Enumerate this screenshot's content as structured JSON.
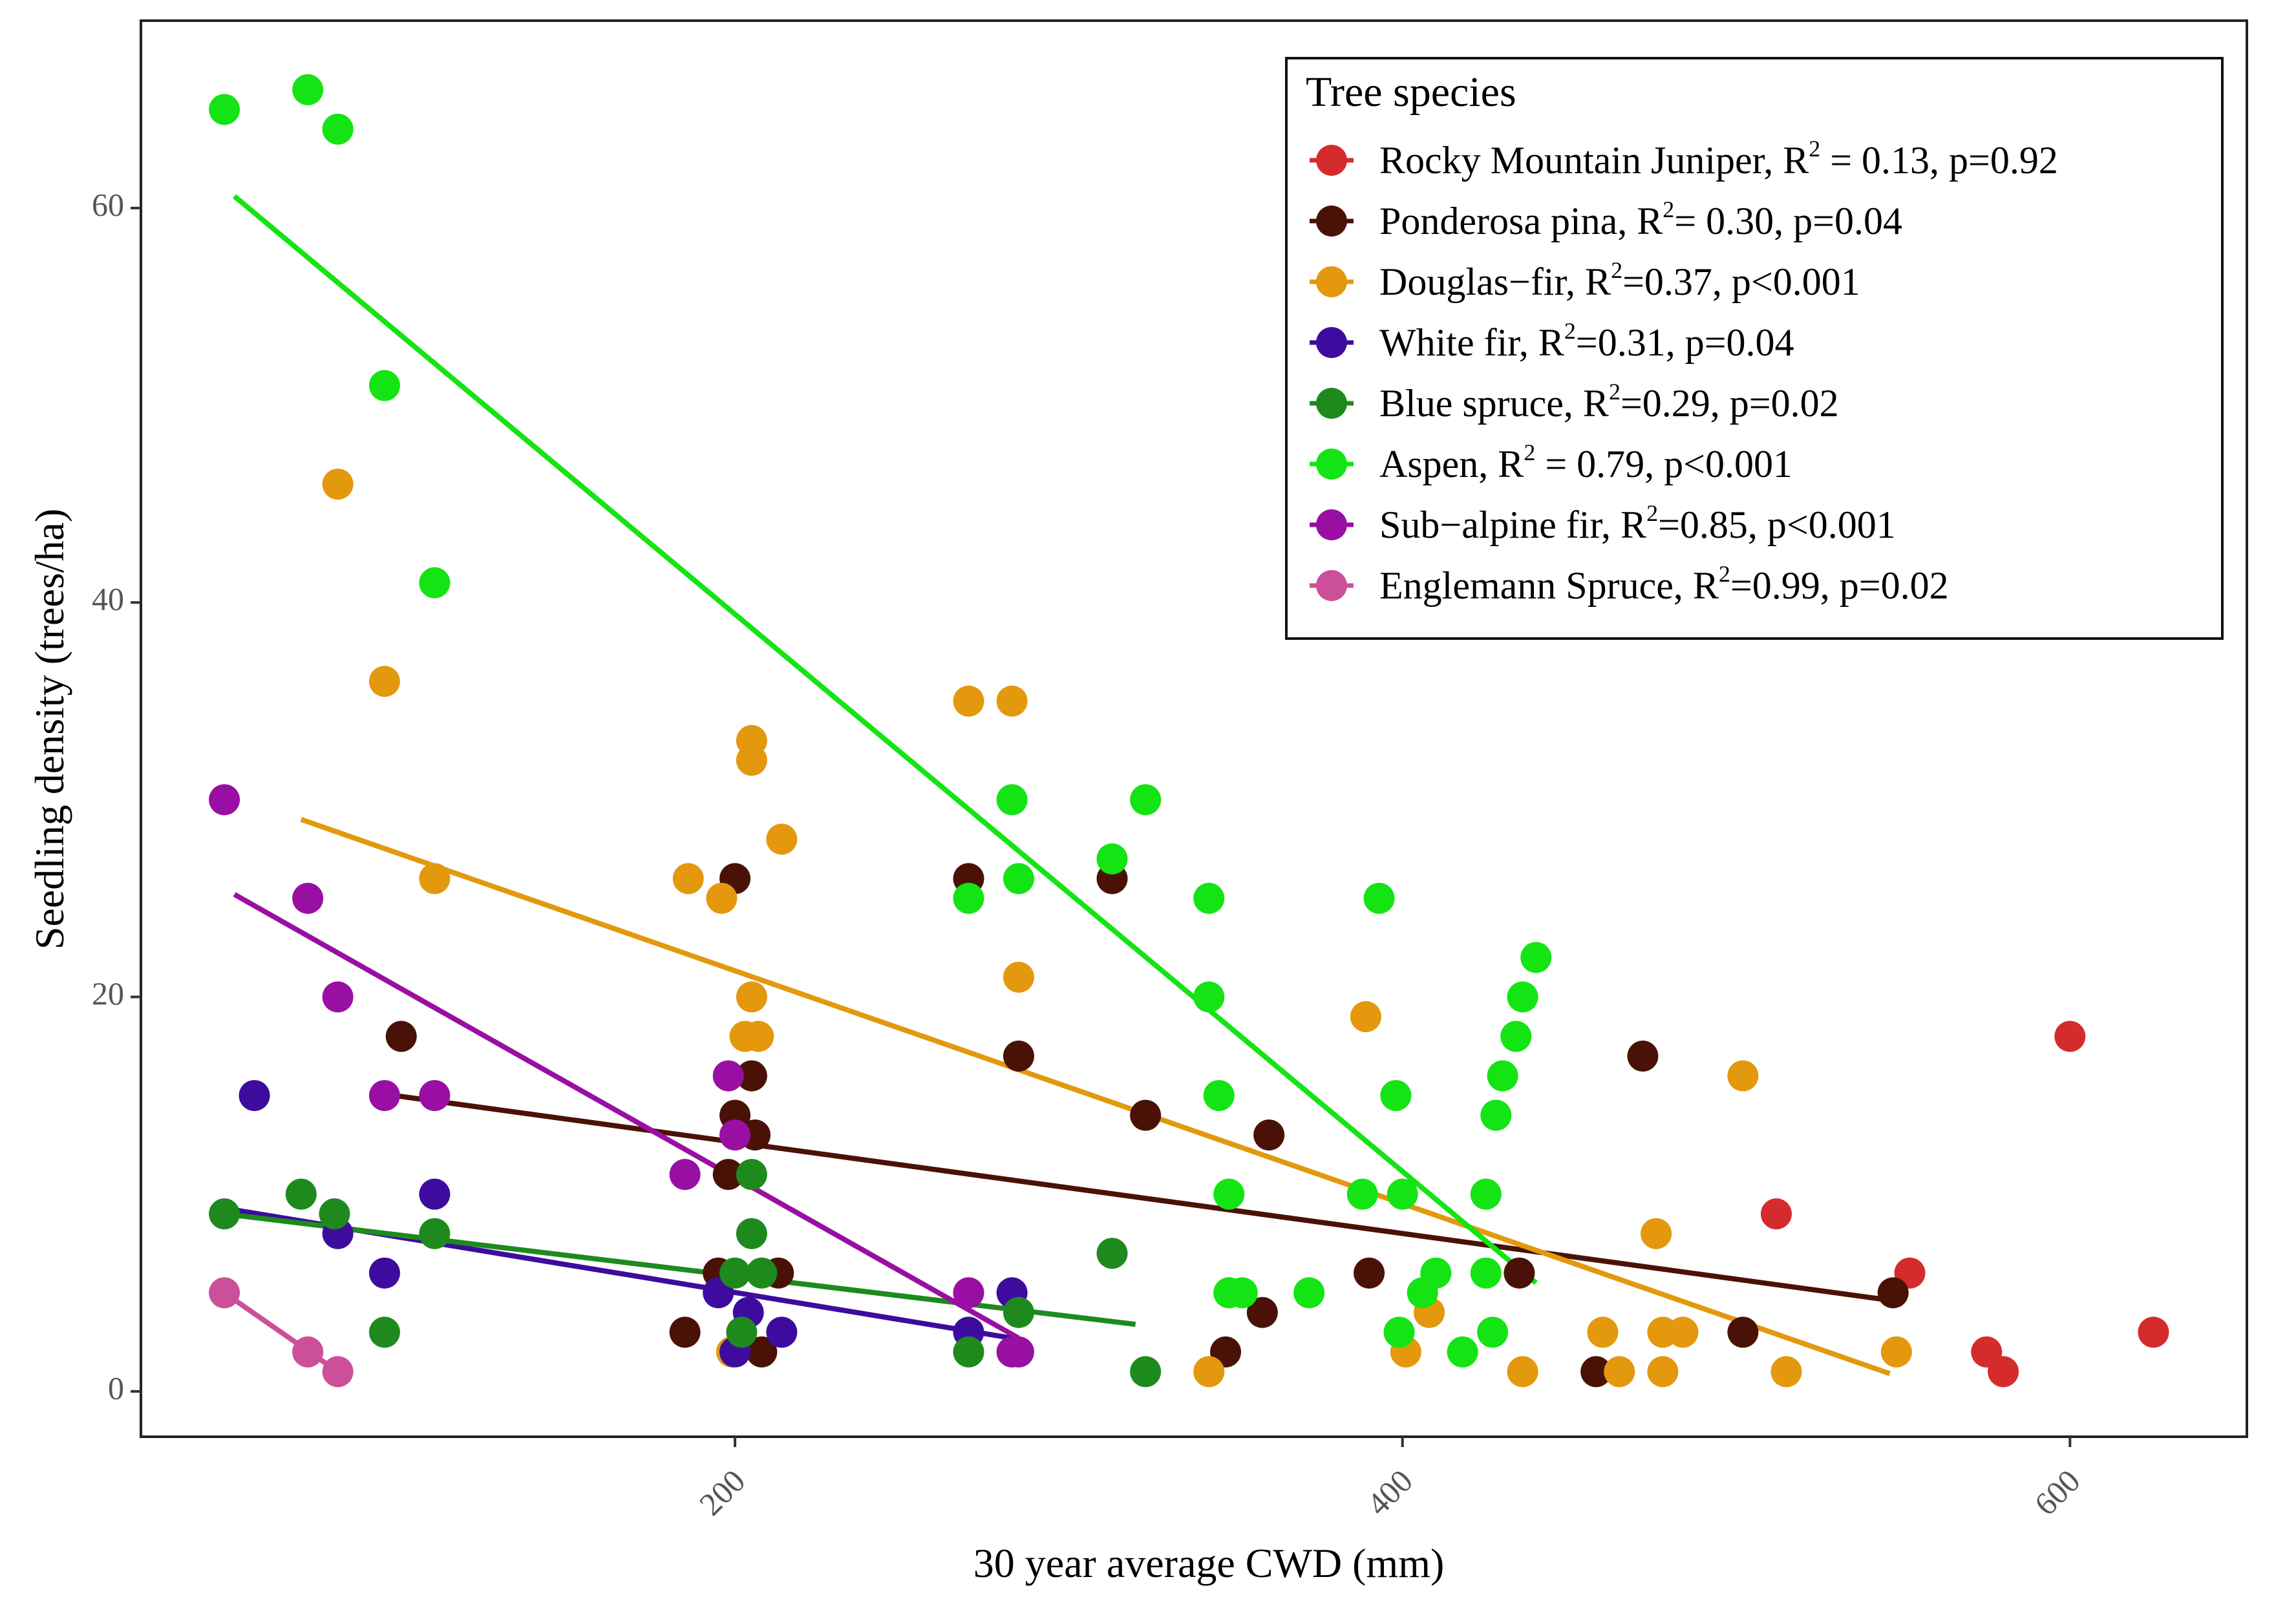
{
  "chart_data": {
    "type": "scatter",
    "xlabel": "30 year average CWD (mm)",
    "ylabel": "Seedling density (trees/ha)",
    "xlim": [
      22,
      653
    ],
    "ylim": [
      -2.3,
      69.5
    ],
    "xticks": [
      200,
      400,
      600
    ],
    "yticks": [
      0,
      20,
      40,
      60
    ],
    "x_tick_labels": [
      "200",
      "400",
      "600"
    ],
    "y_tick_labels": [
      "0",
      "20",
      "40",
      "60"
    ],
    "grid": false,
    "legend": {
      "title": "Tree species",
      "position": "top-right"
    },
    "series": [
      {
        "name": "Rocky Mountain Juniper",
        "label_main": "Rocky Mountain Juniper, R",
        "label_sup": "2",
        "label_rest": " = 0.13, p=0.92",
        "color": "#d42c2c",
        "points": [
          [
            600,
            18
          ],
          [
            512,
            9
          ],
          [
            552,
            6
          ],
          [
            575,
            2
          ],
          [
            580,
            1
          ],
          [
            625,
            3
          ]
        ],
        "fit": null
      },
      {
        "name": "Ponderosa pina",
        "label_main": "Ponderosa pina, R",
        "label_sup": "2",
        "label_rest": "= 0.30, p=0.04",
        "color": "#4a1206",
        "points": [
          [
            100,
            18
          ],
          [
            200,
            26
          ],
          [
            200,
            14
          ],
          [
            205,
            16
          ],
          [
            206,
            13
          ],
          [
            198,
            11
          ],
          [
            195,
            6
          ],
          [
            213,
            6
          ],
          [
            185,
            3
          ],
          [
            208,
            2
          ],
          [
            270,
            26
          ],
          [
            285,
            17
          ],
          [
            313,
            26
          ],
          [
            323,
            14
          ],
          [
            360,
            13
          ],
          [
            358,
            4
          ],
          [
            347,
            2
          ],
          [
            390,
            6
          ],
          [
            435,
            6
          ],
          [
            472,
            17
          ],
          [
            458,
            1
          ],
          [
            502,
            3
          ],
          [
            547,
            5
          ]
        ],
        "fit": [
          [
            98,
            15.0
          ],
          [
            547,
            4.6
          ]
        ]
      },
      {
        "name": "Douglas-fir",
        "label_main": "Douglas−fir, R",
        "label_sup": "2",
        "label_rest": "=0.37, p<0.001",
        "color": "#e3980e",
        "points": [
          [
            81,
            46
          ],
          [
            95,
            36
          ],
          [
            110,
            26
          ],
          [
            186,
            26
          ],
          [
            196,
            25
          ],
          [
            205,
            33
          ],
          [
            205,
            32
          ],
          [
            205,
            20
          ],
          [
            203,
            18
          ],
          [
            207,
            18
          ],
          [
            214,
            28
          ],
          [
            270,
            35
          ],
          [
            283,
            35
          ],
          [
            285,
            21
          ],
          [
            199,
            2
          ],
          [
            389,
            19
          ],
          [
            408,
            4
          ],
          [
            401,
            2
          ],
          [
            342,
            1
          ],
          [
            436,
            1
          ],
          [
            460,
            3
          ],
          [
            465,
            1
          ],
          [
            476,
            8
          ],
          [
            478,
            3
          ],
          [
            478,
            1
          ],
          [
            484,
            3
          ],
          [
            502,
            16
          ],
          [
            515,
            1
          ],
          [
            548,
            2
          ]
        ],
        "fit": [
          [
            70,
            29.0
          ],
          [
            546,
            0.9
          ]
        ]
      },
      {
        "name": "White fir",
        "label_main": "White fir, R",
        "label_sup": "2",
        "label_rest": "=0.31, p=0.04",
        "color": "#3d0c9e",
        "points": [
          [
            56,
            15
          ],
          [
            81,
            8
          ],
          [
            95,
            6
          ],
          [
            110,
            10
          ],
          [
            195,
            5
          ],
          [
            200,
            2
          ],
          [
            204,
            4
          ],
          [
            214,
            3
          ],
          [
            270,
            3
          ],
          [
            283,
            5
          ]
        ],
        "fit": [
          [
            50,
            9.2
          ],
          [
            283,
            2.7
          ]
        ]
      },
      {
        "name": "Blue spruce",
        "label_main": "Blue spruce, R",
        "label_sup": "2",
        "label_rest": "=0.29, p=0.02",
        "color": "#1e8a1e",
        "points": [
          [
            47,
            9
          ],
          [
            70,
            10
          ],
          [
            80,
            9
          ],
          [
            95,
            3
          ],
          [
            110,
            8
          ],
          [
            200,
            6
          ],
          [
            205,
            11
          ],
          [
            205,
            8
          ],
          [
            208,
            6
          ],
          [
            202,
            3
          ],
          [
            270,
            2
          ],
          [
            285,
            4
          ],
          [
            313,
            7
          ],
          [
            323,
            1
          ]
        ],
        "fit": [
          [
            47,
            9.0
          ],
          [
            320,
            3.4
          ]
        ]
      },
      {
        "name": "Aspen",
        "label_main": "Aspen, R",
        "label_sup": "2",
        "label_rest": " = 0.79, p<0.001",
        "color": "#14e414",
        "points": [
          [
            47,
            65
          ],
          [
            72,
            66
          ],
          [
            81,
            64
          ],
          [
            95,
            51
          ],
          [
            110,
            41
          ],
          [
            270,
            25
          ],
          [
            283,
            30
          ],
          [
            285,
            26
          ],
          [
            313,
            27
          ],
          [
            323,
            30
          ],
          [
            342,
            25
          ],
          [
            342,
            20
          ],
          [
            345,
            15
          ],
          [
            348,
            10
          ],
          [
            348,
            5
          ],
          [
            352,
            5
          ],
          [
            372,
            5
          ],
          [
            393,
            25
          ],
          [
            388,
            10
          ],
          [
            398,
            15
          ],
          [
            400,
            10
          ],
          [
            399,
            3
          ],
          [
            406,
            5
          ],
          [
            410,
            6
          ],
          [
            418,
            2
          ],
          [
            425,
            10
          ],
          [
            428,
            14
          ],
          [
            430,
            16
          ],
          [
            434,
            18
          ],
          [
            436,
            20
          ],
          [
            440,
            22
          ],
          [
            425,
            6
          ],
          [
            427,
            3
          ]
        ],
        "fit": [
          [
            50,
            60.6
          ],
          [
            440,
            5.5
          ]
        ]
      },
      {
        "name": "Sub-alpine fir",
        "label_main": "Sub−alpine fir, R",
        "label_sup": "2",
        "label_rest": "=0.85, p<0.001",
        "color": "#990fa3",
        "points": [
          [
            47,
            30
          ],
          [
            72,
            25
          ],
          [
            81,
            20
          ],
          [
            95,
            15
          ],
          [
            110,
            15
          ],
          [
            185,
            11
          ],
          [
            198,
            16
          ],
          [
            200,
            13
          ],
          [
            270,
            5
          ],
          [
            285,
            2
          ],
          [
            283,
            2
          ]
        ],
        "fit": [
          [
            50,
            25.2
          ],
          [
            285,
            2.7
          ]
        ]
      },
      {
        "name": "Englemann Spruce",
        "label_main": "Englemann Spruce, R",
        "label_sup": "2",
        "label_rest": "=0.99, p=0.02",
        "color": "#cc4f9a",
        "points": [
          [
            47,
            5
          ],
          [
            72,
            2
          ],
          [
            81,
            1
          ]
        ],
        "fit": [
          [
            47,
            5.0
          ],
          [
            81,
            1.0
          ]
        ]
      }
    ]
  }
}
